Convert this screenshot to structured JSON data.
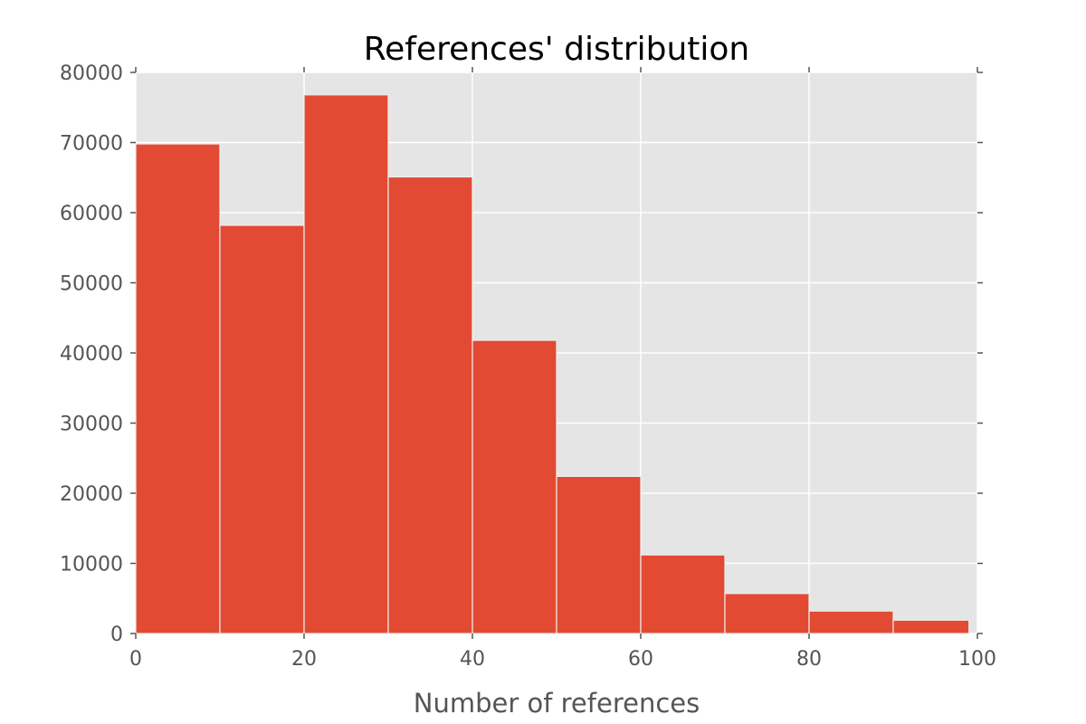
{
  "chart_data": {
    "type": "bar",
    "subtype": "histogram",
    "title": "References' distribution",
    "xlabel": "Number of references",
    "ylabel": "",
    "bins": [
      {
        "x0": 0,
        "x1": 10,
        "count": 69800
      },
      {
        "x0": 10,
        "x1": 20,
        "count": 58200
      },
      {
        "x0": 20,
        "x1": 30,
        "count": 76800
      },
      {
        "x0": 30,
        "x1": 40,
        "count": 65100
      },
      {
        "x0": 40,
        "x1": 50,
        "count": 41800
      },
      {
        "x0": 50,
        "x1": 60,
        "count": 22400
      },
      {
        "x0": 60,
        "x1": 70,
        "count": 11200
      },
      {
        "x0": 70,
        "x1": 80,
        "count": 5700
      },
      {
        "x0": 80,
        "x1": 90,
        "count": 3200
      },
      {
        "x0": 90,
        "x1": 99,
        "count": 1900
      }
    ],
    "xlim": [
      0,
      100
    ],
    "ylim": [
      0,
      80000
    ],
    "xticks": [
      "0",
      "20",
      "40",
      "60",
      "80",
      "100"
    ],
    "yticks": [
      "0",
      "10000",
      "20000",
      "30000",
      "40000",
      "50000",
      "60000",
      "70000",
      "80000"
    ],
    "grid": true,
    "style": "ggplot",
    "colors": {
      "bar": "#E24A33",
      "bar_edge": "#EEEEEE",
      "plot_background": "#E5E5E5",
      "grid": "#FFFFFF",
      "tick_text": "#555555",
      "title_text": "#000000"
    }
  }
}
